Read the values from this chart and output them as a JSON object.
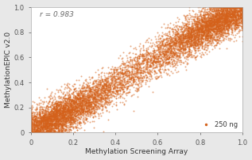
{
  "xlabel": "Methylation Screening Array",
  "ylabel": "MethylationEPIC v2.0",
  "xlim": [
    0,
    1.0
  ],
  "ylim": [
    0,
    1.0
  ],
  "xticks": [
    0.0,
    0.2,
    0.4,
    0.6,
    0.8,
    1.0
  ],
  "yticks": [
    0.0,
    0.2,
    0.4,
    0.6,
    0.8,
    1.0
  ],
  "xticklabels": [
    "0",
    "0.2",
    "0.4",
    "0.6",
    "0.8",
    "1.0"
  ],
  "yticklabels": [
    "0",
    "0.2",
    "0.4",
    "0.6",
    "0.8",
    "1.0"
  ],
  "annotation": "r = 0.983",
  "legend_label": "250 ng",
  "dot_color": "#D4611A",
  "dot_alpha": 0.55,
  "dot_size": 2.0,
  "n_points": 10000,
  "background_color": "#e8e8e8",
  "axes_background": "#ffffff",
  "spine_color": "#aaaaaa",
  "tick_color": "#555555",
  "label_color": "#333333"
}
